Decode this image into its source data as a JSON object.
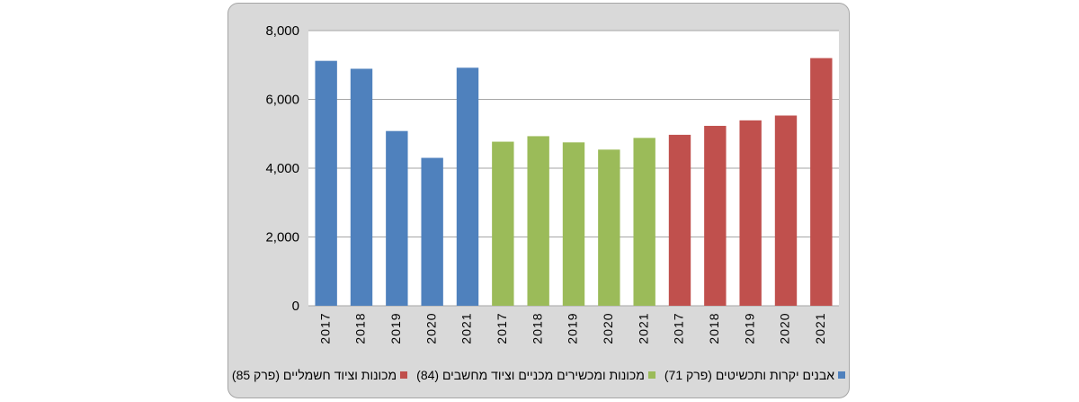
{
  "chart_data": {
    "type": "bar",
    "ylim": [
      0,
      8000
    ],
    "yticks": [
      "0",
      "2,000",
      "4,000",
      "6,000",
      "8,000"
    ],
    "ytick_values": [
      0,
      2000,
      4000,
      6000,
      8000
    ],
    "grid": true,
    "legend_position": "bottom",
    "series": [
      {
        "name": "אבנים יקרות ותכשיטים (פרק 71)",
        "color": "#4f81bd",
        "categories": [
          "2017",
          "2018",
          "2019",
          "2020",
          "2021"
        ],
        "values": [
          7120,
          6890,
          5080,
          4300,
          6920
        ]
      },
      {
        "name": "מכונות ומכשירים מכניים וציוד מחשבים (84)",
        "color": "#9bbb59",
        "categories": [
          "2017",
          "2018",
          "2019",
          "2020",
          "2021"
        ],
        "values": [
          4770,
          4930,
          4750,
          4540,
          4880
        ]
      },
      {
        "name": "מכונות וציוד חשמליים (פרק 85)",
        "color": "#c0504d",
        "categories": [
          "2017",
          "2018",
          "2019",
          "2020",
          "2021"
        ],
        "values": [
          4970,
          5230,
          5390,
          5530,
          7200
        ]
      }
    ]
  }
}
